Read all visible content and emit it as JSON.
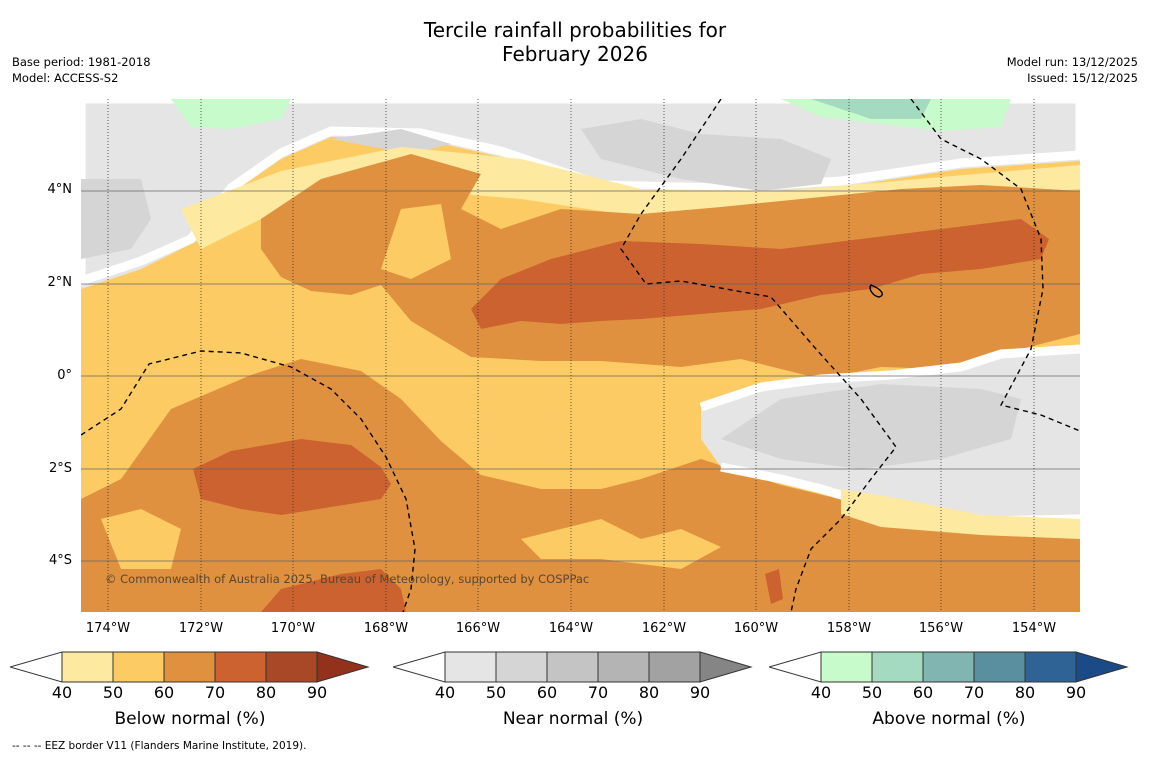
{
  "title": {
    "line1": "Tercile rainfall probabilities for",
    "line2": "February 2026"
  },
  "meta_left": {
    "base_period": "Base period: 1981-2018",
    "model": "Model: ACCESS-S2"
  },
  "meta_right": {
    "model_run": "Model run: 13/12/2025",
    "issued": "Issued: 15/12/2025"
  },
  "map": {
    "y_ticks": [
      "4°N",
      "2°N",
      "0°",
      "2°S",
      "4°S"
    ],
    "x_ticks": [
      "174°W",
      "172°W",
      "170°W",
      "168°W",
      "166°W",
      "164°W",
      "162°W",
      "160°W",
      "158°W",
      "156°W",
      "154°W"
    ],
    "copyright": "© Commonwealth of Australia 2025, Bureau of Meteorology, supported by COSPPac",
    "colors": {
      "below": [
        "#fdeaa0",
        "#fdcb63",
        "#e0913f",
        "#cc6230",
        "#a94826",
        "#93321c"
      ],
      "near": [
        "#e5e5e5",
        "#d5d5d5",
        "#c4c4c4",
        "#b4b4b4",
        "#a2a2a2",
        "#858585"
      ],
      "above": [
        "#c8fbcb",
        "#a4dbc0",
        "#80b5b2",
        "#5a8f9f",
        "#2f6396",
        "#1b4b86"
      ]
    }
  },
  "colorbars": [
    {
      "title": "Below normal (%)",
      "labels": [
        "40",
        "50",
        "60",
        "70",
        "80",
        "90"
      ]
    },
    {
      "title": "Near normal (%)",
      "labels": [
        "40",
        "50",
        "60",
        "70",
        "80",
        "90"
      ]
    },
    {
      "title": "Above normal (%)",
      "labels": [
        "40",
        "50",
        "60",
        "70",
        "80",
        "90"
      ]
    }
  ],
  "footnote": "--  --  -- EEZ border V11 (Flanders Marine Institute, 2019)."
}
